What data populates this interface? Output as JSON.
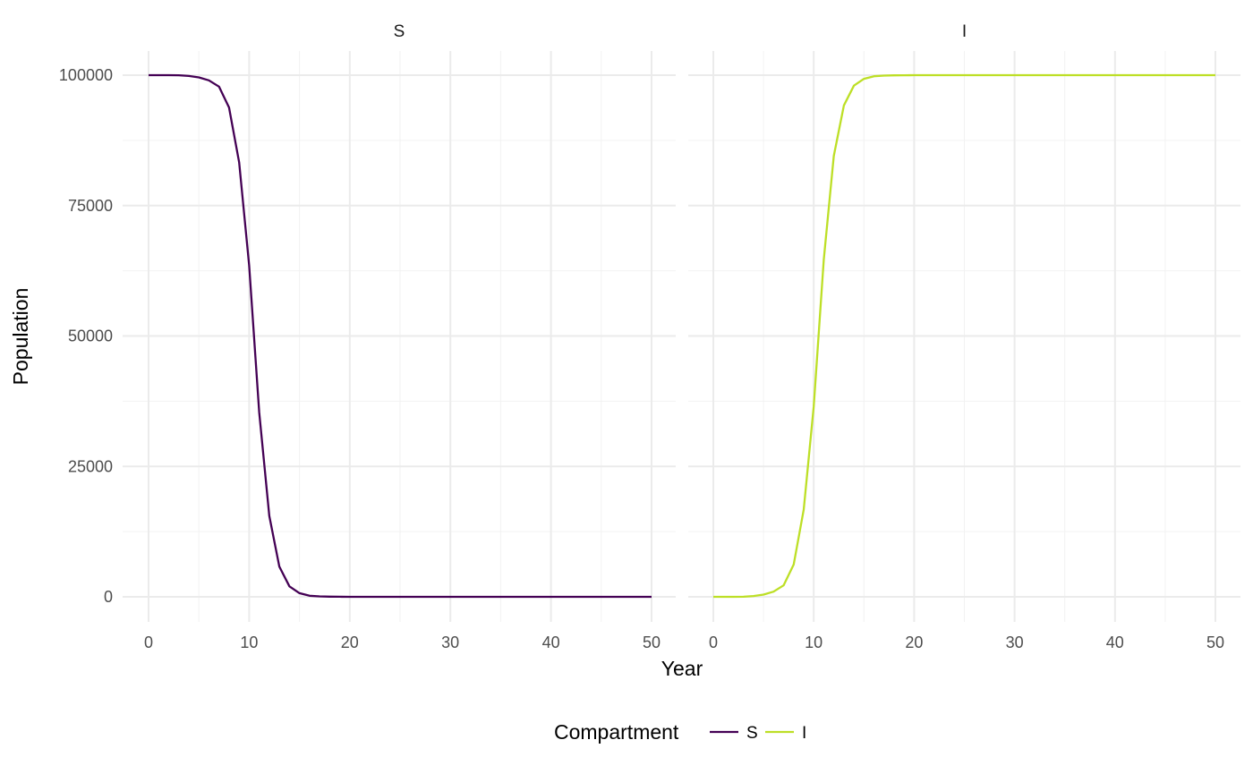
{
  "chart_data": {
    "type": "line",
    "facets": [
      "S",
      "I"
    ],
    "xlabel": "Year",
    "ylabel": "Population",
    "xlim": [
      0,
      50
    ],
    "ylim": [
      0,
      100000
    ],
    "x_ticks": [
      0,
      10,
      20,
      30,
      40,
      50
    ],
    "y_ticks": [
      0,
      25000,
      50000,
      75000,
      100000
    ],
    "y_tick_labels": [
      "0",
      "25000",
      "50000",
      "75000",
      "100000"
    ],
    "x_tick_labels": [
      "0",
      "10",
      "20",
      "30",
      "40",
      "50"
    ],
    "grid": true,
    "legend": {
      "title": "Compartment",
      "position": "bottom",
      "entries": [
        {
          "label": "S",
          "color": "#440154"
        },
        {
          "label": "I",
          "color": "#bddf26"
        }
      ]
    },
    "x": [
      0,
      1,
      2,
      3,
      4,
      5,
      6,
      7,
      8,
      9,
      10,
      11,
      12,
      13,
      14,
      15,
      16,
      17,
      18,
      19,
      20,
      21,
      22,
      23,
      24,
      25,
      26,
      27,
      28,
      29,
      30,
      31,
      32,
      33,
      34,
      35,
      36,
      37,
      38,
      39,
      40,
      41,
      42,
      43,
      44,
      45,
      46,
      47,
      48,
      49,
      50
    ],
    "series": [
      {
        "name": "S",
        "facet": "S",
        "color": "#440154",
        "values": [
          100000,
          99999,
          99997,
          99990,
          99840,
          99570,
          99000,
          97800,
          93800,
          83300,
          63500,
          35400,
          15500,
          5800,
          2000,
          700,
          200,
          80,
          30,
          10,
          5,
          2,
          1,
          0,
          0,
          0,
          0,
          0,
          0,
          0,
          0,
          0,
          0,
          0,
          0,
          0,
          0,
          0,
          0,
          0,
          0,
          0,
          0,
          0,
          0,
          0,
          0,
          0,
          0,
          0,
          0
        ]
      },
      {
        "name": "I",
        "facet": "I",
        "color": "#bddf26",
        "values": [
          0,
          1,
          3,
          10,
          160,
          430,
          1000,
          2200,
          6200,
          16700,
          36500,
          64600,
          84500,
          94200,
          98000,
          99300,
          99800,
          99920,
          99970,
          99990,
          99995,
          99998,
          99999,
          100000,
          100000,
          100000,
          100000,
          100000,
          100000,
          100000,
          100000,
          100000,
          100000,
          100000,
          100000,
          100000,
          100000,
          100000,
          100000,
          100000,
          100000,
          100000,
          100000,
          100000,
          100000,
          100000,
          100000,
          100000,
          100000,
          100000,
          100000
        ]
      }
    ]
  }
}
